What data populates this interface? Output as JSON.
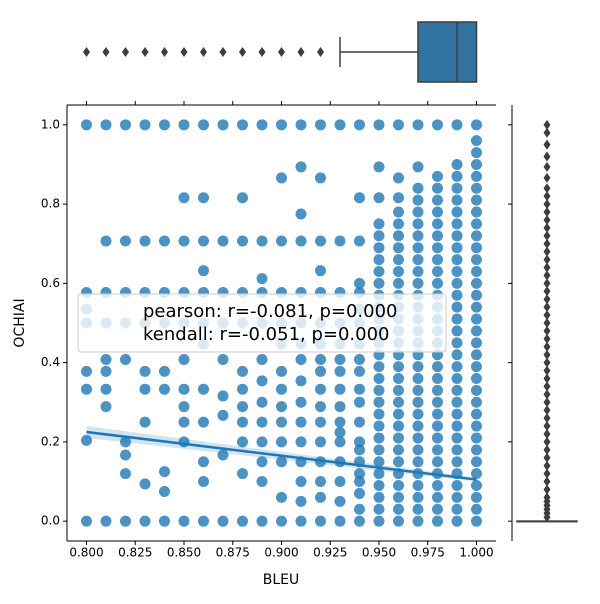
{
  "chart_data": {
    "type": "jointplot",
    "x_label": "BLEU",
    "y_label": "OCHIAI",
    "color": "#1f77b4",
    "outlier_color": "#3d3d3d",
    "xlim": [
      0.79,
      1.01
    ],
    "ylim": [
      -0.05,
      1.05
    ],
    "xticks": [
      {
        "value": 0.8,
        "label": "0.800"
      },
      {
        "value": 0.825,
        "label": "0.825"
      },
      {
        "value": 0.85,
        "label": "0.850"
      },
      {
        "value": 0.875,
        "label": "0.875"
      },
      {
        "value": 0.9,
        "label": "0.900"
      },
      {
        "value": 0.925,
        "label": "0.925"
      },
      {
        "value": 0.95,
        "label": "0.950"
      },
      {
        "value": 0.975,
        "label": "0.975"
      },
      {
        "value": 1.0,
        "label": "1.000"
      }
    ],
    "yticks": [
      {
        "value": 0,
        "label": "0.0"
      },
      {
        "value": 0.2,
        "label": "0.2"
      },
      {
        "value": 0.4,
        "label": "0.4"
      },
      {
        "value": 0.6,
        "label": "0.6"
      },
      {
        "value": 0.8,
        "label": "0.8"
      },
      {
        "value": 1.0,
        "label": "1.0"
      }
    ],
    "annotations": [
      "pearson: r=-0.081, p=0.000",
      "kendall: r=-0.051, p=0.000"
    ],
    "regression": {
      "x": [
        0.8,
        1.0
      ],
      "y": [
        0.225,
        0.105
      ],
      "ci_low": [
        0.21,
        0.1
      ],
      "ci_high": [
        0.24,
        0.11
      ]
    },
    "columns": [
      {
        "x": 0.8,
        "y": [
          0,
          1,
          0.577,
          0.535,
          0.378,
          0.333,
          0.5,
          0.204
        ]
      },
      {
        "x": 0.81,
        "y": [
          0,
          1,
          0.707,
          0.577,
          0.5,
          0.333,
          0.289,
          0.378,
          0.408
        ]
      },
      {
        "x": 0.82,
        "y": [
          0,
          1,
          0.707,
          0.577,
          0.5,
          0.408,
          0.2,
          0.167,
          0.12
        ]
      },
      {
        "x": 0.83,
        "y": [
          0,
          1,
          0.707,
          0.577,
          0.5,
          0.378,
          0.25,
          0.333,
          0.094
        ]
      },
      {
        "x": 0.84,
        "y": [
          0,
          1,
          0.707,
          0.577,
          0.5,
          0.378,
          0.333,
          0.125,
          0.075
        ]
      },
      {
        "x": 0.85,
        "y": [
          0,
          1,
          0.816,
          0.707,
          0.577,
          0.5,
          0.408,
          0.333,
          0.289,
          0.25,
          0.2
        ]
      },
      {
        "x": 0.86,
        "y": [
          0,
          1,
          0.816,
          0.707,
          0.632,
          0.577,
          0.5,
          0.447,
          0.333,
          0.25,
          0.15,
          0.1
        ]
      },
      {
        "x": 0.87,
        "y": [
          0,
          1,
          0.707,
          0.577,
          0.5,
          0.408,
          0.316,
          0.267,
          0.167
        ]
      },
      {
        "x": 0.88,
        "y": [
          0,
          1,
          0.816,
          0.707,
          0.577,
          0.5,
          0.378,
          0.333,
          0.289,
          0.25,
          0.2,
          0.12
        ]
      },
      {
        "x": 0.89,
        "y": [
          0,
          1,
          0.707,
          0.612,
          0.577,
          0.5,
          0.408,
          0.354,
          0.3,
          0.25,
          0.2,
          0.15,
          0.1
        ]
      },
      {
        "x": 0.9,
        "y": [
          0,
          1,
          0.866,
          0.707,
          0.577,
          0.5,
          0.447,
          0.378,
          0.333,
          0.289,
          0.25,
          0.2,
          0.15,
          0.06
        ]
      },
      {
        "x": 0.91,
        "y": [
          0,
          1,
          0.894,
          0.775,
          0.707,
          0.577,
          0.5,
          0.447,
          0.408,
          0.354,
          0.3,
          0.25,
          0.2,
          0.15,
          0.1,
          0.05
        ]
      },
      {
        "x": 0.92,
        "y": [
          0,
          1,
          0.866,
          0.707,
          0.632,
          0.577,
          0.5,
          0.447,
          0.408,
          0.378,
          0.333,
          0.289,
          0.25,
          0.2,
          0.15,
          0.1,
          0.06
        ]
      },
      {
        "x": 0.93,
        "y": [
          0,
          1,
          0.707,
          0.577,
          0.5,
          0.447,
          0.408,
          0.378,
          0.333,
          0.289,
          0.25,
          0.224,
          0.2,
          0.15,
          0.1,
          0.05
        ]
      },
      {
        "x": 0.94,
        "y": [
          0,
          1,
          0.816,
          0.707,
          0.6,
          0.577,
          0.535,
          0.5,
          0.447,
          0.408,
          0.378,
          0.333,
          0.3,
          0.25,
          0.2,
          0.18,
          0.15,
          0.12,
          0.1,
          0.07,
          0.03
        ]
      },
      {
        "x": 0.95,
        "y": [
          0,
          0.03,
          0.06,
          0.09,
          0.12,
          0.15,
          0.18,
          0.21,
          0.24,
          0.27,
          0.3,
          0.33,
          0.36,
          0.39,
          0.42,
          0.45,
          0.48,
          0.51,
          0.54,
          0.57,
          0.6,
          0.63,
          0.66,
          0.69,
          0.72,
          0.75,
          0.816,
          0.894,
          1
        ]
      },
      {
        "x": 0.96,
        "y": [
          0,
          0.03,
          0.06,
          0.09,
          0.12,
          0.15,
          0.18,
          0.21,
          0.24,
          0.27,
          0.3,
          0.33,
          0.36,
          0.39,
          0.42,
          0.45,
          0.48,
          0.51,
          0.54,
          0.57,
          0.6,
          0.63,
          0.66,
          0.69,
          0.72,
          0.75,
          0.78,
          0.816,
          0.866,
          1
        ]
      },
      {
        "x": 0.97,
        "y": [
          0,
          0.03,
          0.06,
          0.09,
          0.12,
          0.15,
          0.18,
          0.21,
          0.24,
          0.27,
          0.3,
          0.33,
          0.36,
          0.39,
          0.42,
          0.45,
          0.48,
          0.51,
          0.54,
          0.57,
          0.6,
          0.63,
          0.66,
          0.69,
          0.72,
          0.75,
          0.78,
          0.81,
          0.84,
          0.894,
          1
        ]
      },
      {
        "x": 0.98,
        "y": [
          0,
          0.03,
          0.06,
          0.09,
          0.12,
          0.15,
          0.18,
          0.21,
          0.24,
          0.27,
          0.3,
          0.33,
          0.36,
          0.39,
          0.42,
          0.45,
          0.48,
          0.51,
          0.54,
          0.57,
          0.6,
          0.63,
          0.66,
          0.69,
          0.72,
          0.75,
          0.78,
          0.81,
          0.84,
          0.87,
          1
        ]
      },
      {
        "x": 0.99,
        "y": [
          0,
          0.03,
          0.06,
          0.09,
          0.12,
          0.15,
          0.18,
          0.21,
          0.24,
          0.27,
          0.3,
          0.33,
          0.36,
          0.39,
          0.42,
          0.45,
          0.48,
          0.51,
          0.54,
          0.57,
          0.6,
          0.63,
          0.66,
          0.69,
          0.72,
          0.75,
          0.78,
          0.81,
          0.84,
          0.87,
          0.9,
          1
        ]
      },
      {
        "x": 1.0,
        "y": [
          0,
          0.03,
          0.06,
          0.09,
          0.12,
          0.15,
          0.18,
          0.21,
          0.24,
          0.27,
          0.3,
          0.33,
          0.36,
          0.39,
          0.42,
          0.45,
          0.48,
          0.51,
          0.54,
          0.57,
          0.6,
          0.63,
          0.66,
          0.69,
          0.72,
          0.75,
          0.78,
          0.81,
          0.84,
          0.87,
          0.9,
          0.93,
          0.96,
          1
        ]
      }
    ],
    "marginal_x": {
      "whisker_low": 0.93,
      "q1": 0.97,
      "median": 0.99,
      "q3": 1.0,
      "whisker_high": 1.0,
      "outliers": [
        0.8,
        0.81,
        0.82,
        0.83,
        0.84,
        0.85,
        0.86,
        0.87,
        0.88,
        0.89,
        0.9,
        0.91,
        0.92
      ]
    },
    "marginal_y": {
      "whisker_low": 0,
      "q1": 0,
      "median": 0,
      "q3": 0,
      "whisker_high": 0,
      "outliers": [
        0.01,
        0.02,
        0.03,
        0.04,
        0.05,
        0.06,
        0.08,
        0.1,
        0.12,
        0.14,
        0.16,
        0.18,
        0.2,
        0.22,
        0.24,
        0.26,
        0.28,
        0.3,
        0.32,
        0.34,
        0.36,
        0.38,
        0.4,
        0.42,
        0.44,
        0.46,
        0.48,
        0.5,
        0.52,
        0.54,
        0.56,
        0.58,
        0.6,
        0.62,
        0.64,
        0.66,
        0.68,
        0.7,
        0.72,
        0.74,
        0.76,
        0.78,
        0.8,
        0.82,
        0.84,
        0.866,
        0.894,
        0.92,
        0.95,
        0.98,
        1
      ]
    }
  }
}
